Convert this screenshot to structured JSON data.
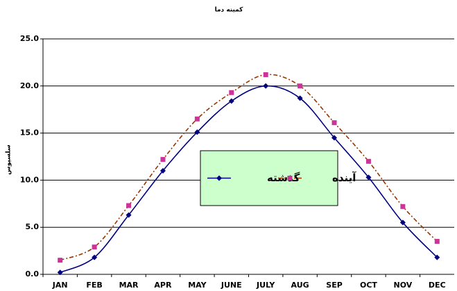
{
  "chart_data": {
    "type": "line",
    "title": "کمینه دما",
    "y_label": "سلسیوس",
    "categories": [
      "JAN",
      "FEB",
      "MAR",
      "APR",
      "MAY",
      "JUNE",
      "JULY",
      "AUG",
      "SEP",
      "OCT",
      "NOV",
      "DEC"
    ],
    "series": [
      {
        "name": "گذشته",
        "color": "#000080",
        "marker": "diamond",
        "dash": false,
        "values": [
          0.2,
          1.8,
          6.3,
          11.0,
          15.1,
          18.4,
          20.0,
          18.7,
          14.5,
          10.3,
          5.5,
          1.8
        ]
      },
      {
        "name": "آینده",
        "color": "#993300",
        "marker_color": "#cc3399",
        "marker": "square",
        "dash": true,
        "values": [
          1.5,
          2.9,
          7.3,
          12.2,
          16.5,
          19.3,
          21.2,
          20.0,
          16.1,
          12.0,
          7.2,
          3.5
        ]
      }
    ],
    "ylim": [
      0,
      25
    ],
    "yticks": [
      {
        "value": 0,
        "label": "0.0"
      },
      {
        "value": 5,
        "label": "5.0"
      },
      {
        "value": 10,
        "label": "10.0"
      },
      {
        "value": 15,
        "label": "15.0"
      },
      {
        "value": 20,
        "label": "20.0"
      },
      {
        "value": 25,
        "label": "25.0"
      }
    ],
    "grid": true,
    "smooth": true,
    "legend": "center"
  }
}
